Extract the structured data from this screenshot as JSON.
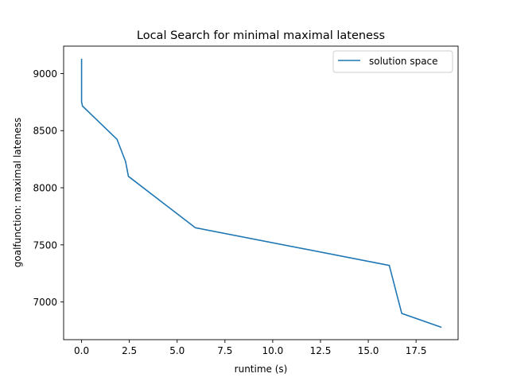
{
  "chart_data": {
    "type": "line",
    "title": "Local Search for minimal maximal lateness",
    "xlabel": "runtime (s)",
    "ylabel": "goalfunction: maximal lateness",
    "xlim": [
      -0.94,
      19.7
    ],
    "ylim": [
      6670,
      9240
    ],
    "x_ticks": [
      0.0,
      2.5,
      5.0,
      7.5,
      10.0,
      12.5,
      15.0,
      17.5
    ],
    "x_tick_labels": [
      "0.0",
      "2.5",
      "5.0",
      "7.5",
      "10.0",
      "12.5",
      "15.0",
      "17.5"
    ],
    "y_ticks": [
      7000,
      7500,
      8000,
      8500,
      9000
    ],
    "y_tick_labels": [
      "7000",
      "7500",
      "8000",
      "8500",
      "9000"
    ],
    "grid": false,
    "legend_position": "top-right",
    "series": [
      {
        "name": "solution space",
        "color": "#1f77b4",
        "x": [
          0.0,
          0.0,
          0.05,
          1.85,
          2.3,
          2.45,
          5.95,
          16.1,
          16.75,
          18.8
        ],
        "y": [
          9125,
          8750,
          8715,
          8425,
          8230,
          8100,
          7650,
          7320,
          6900,
          6780
        ]
      }
    ]
  }
}
